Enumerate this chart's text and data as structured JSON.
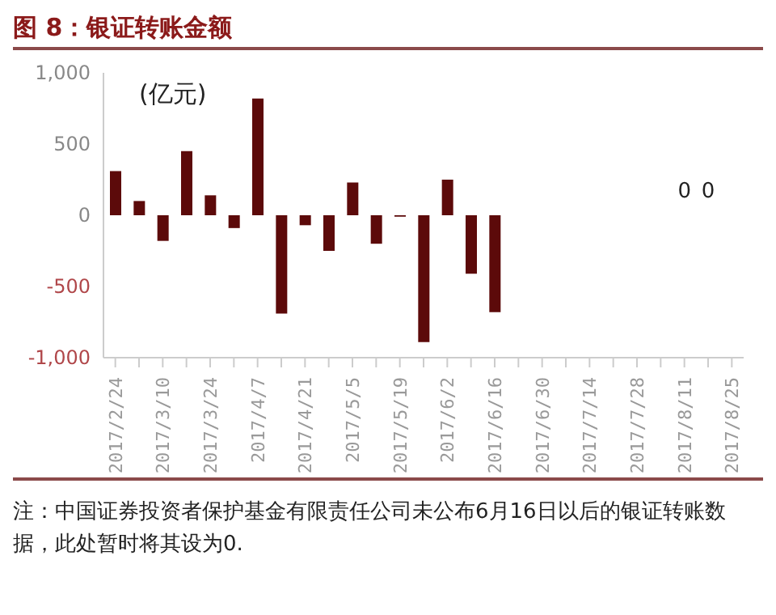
{
  "chart_data": {
    "type": "bar",
    "title": "图 8：银证转账金额",
    "ylabel": "(亿元)",
    "categories": [
      "2017/2/24",
      null,
      "2017/3/10",
      null,
      "2017/3/24",
      null,
      "2017/4/7",
      null,
      "2017/4/21",
      null,
      "2017/5/5",
      null,
      "2017/5/19",
      null,
      "2017/6/2",
      null,
      "2017/6/16",
      null,
      "2017/6/30",
      null,
      "2017/7/14",
      null,
      "2017/7/28",
      null,
      "2017/8/11",
      null,
      "2017/8/25"
    ],
    "values": [
      310,
      100,
      -180,
      450,
      140,
      -90,
      820,
      -690,
      -70,
      -250,
      230,
      -200,
      -10,
      -890,
      250,
      -410,
      -680,
      0,
      0,
      0,
      0,
      0,
      0,
      0,
      0,
      0,
      0
    ],
    "value_labels": [
      null,
      null,
      null,
      null,
      null,
      null,
      null,
      null,
      null,
      null,
      null,
      null,
      null,
      null,
      null,
      null,
      null,
      null,
      null,
      null,
      null,
      null,
      null,
      null,
      "0",
      "0",
      null
    ],
    "color": "#5c0a0a",
    "ylim": [
      -1000,
      1000
    ],
    "yticks": [
      {
        "value": -1000,
        "label": "-1,000"
      },
      -500,
      0,
      500,
      {
        "value": 1000,
        "label": "1,000"
      }
    ],
    "grid": false,
    "legend": false,
    "annotations": [
      "注：中国证券投资者保护基金有限责任公司未公布6月16日以后的银证转账数据，此处暂时将其设为0."
    ]
  }
}
